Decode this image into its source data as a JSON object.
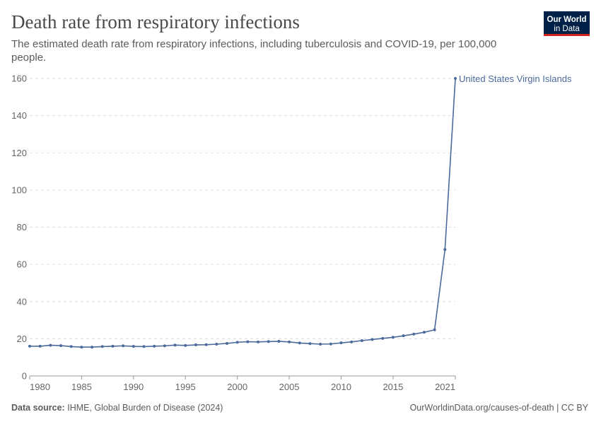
{
  "chart_data": {
    "type": "line",
    "title": "Death rate from respiratory infections",
    "subtitle": [
      "The estimated death rate from respiratory infections, including tuberculosis and COVID-19, per 100,000",
      "people."
    ],
    "x": [
      1980,
      1981,
      1982,
      1983,
      1984,
      1985,
      1986,
      1987,
      1988,
      1989,
      1990,
      1991,
      1992,
      1993,
      1994,
      1995,
      1996,
      1997,
      1998,
      1999,
      2000,
      2001,
      2002,
      2003,
      2004,
      2005,
      2006,
      2007,
      2008,
      2009,
      2010,
      2011,
      2012,
      2013,
      2014,
      2015,
      2016,
      2017,
      2018,
      2019,
      2020,
      2021
    ],
    "series": [
      {
        "name": "United States Virgin Islands",
        "color": "#4c6a9c",
        "values": [
          16.0,
          16.0,
          16.5,
          16.3,
          15.8,
          15.5,
          15.5,
          15.8,
          16.0,
          16.2,
          15.9,
          15.8,
          16.0,
          16.2,
          16.6,
          16.4,
          16.7,
          16.8,
          17.1,
          17.5,
          18.1,
          18.4,
          18.3,
          18.5,
          18.6,
          18.3,
          17.7,
          17.4,
          17.1,
          17.2,
          17.8,
          18.3,
          19.0,
          19.6,
          20.2,
          20.8,
          21.6,
          22.5,
          23.5,
          24.8,
          68,
          160
        ]
      }
    ],
    "xlim": [
      1980,
      2021
    ],
    "xticks": [
      1980,
      1985,
      1990,
      1995,
      2000,
      2005,
      2010,
      2015,
      2021
    ],
    "ylim": [
      0,
      160
    ],
    "yticks": [
      0,
      20,
      40,
      60,
      80,
      100,
      120,
      140,
      160
    ],
    "grid": true,
    "source_label": "Data source:",
    "source": "IHME, Global Burden of Disease (2024)",
    "url": "OurWorldinData.org/causes-of-death | CC BY"
  },
  "logo": [
    "Our World",
    "in Data"
  ]
}
